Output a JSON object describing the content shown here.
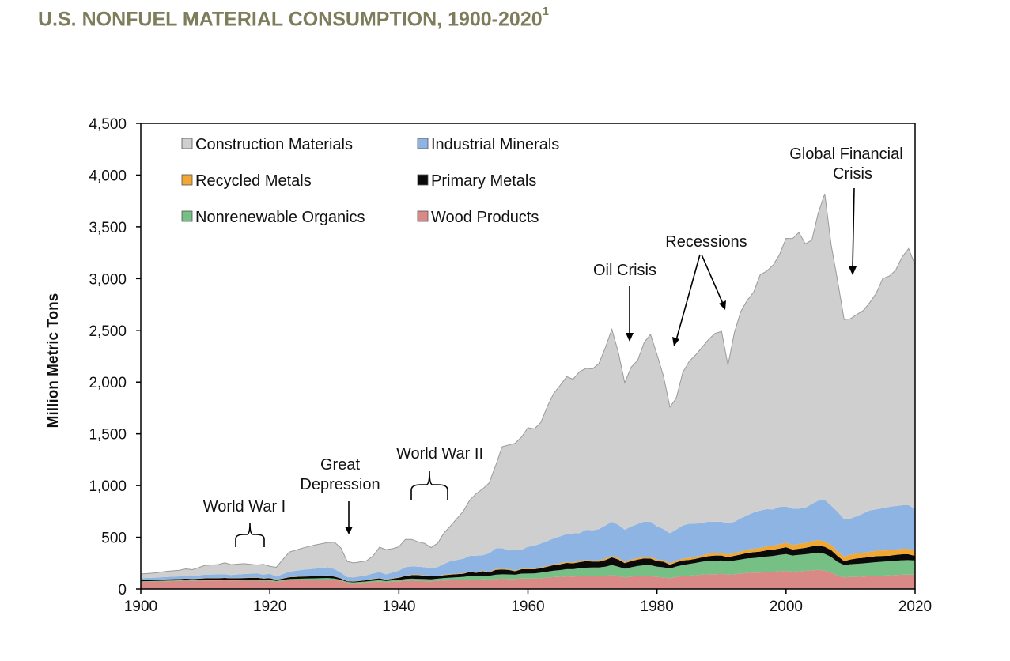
{
  "page": {
    "title": "U.S. NONFUEL MATERIAL CONSUMPTION, 1900-2020",
    "title_superscript": "1"
  },
  "chart_data": {
    "type": "area",
    "stacked": true,
    "title": "U.S. NONFUEL MATERIAL CONSUMPTION, 1900-2020",
    "xlabel": "",
    "ylabel": "Million Metric Tons",
    "xlim": [
      1900,
      2020
    ],
    "ylim": [
      0,
      4500
    ],
    "xticks": [
      "1900",
      "1920",
      "1940",
      "1960",
      "1980",
      "2000",
      "2020"
    ],
    "yticks": [
      "0",
      "500",
      "1,000",
      "1,500",
      "2,000",
      "2,500",
      "3,000",
      "3,500",
      "4,000",
      "4,500"
    ],
    "grid": false,
    "legend_position": "top-left",
    "x": [
      1900,
      1902,
      1904,
      1906,
      1907,
      1908,
      1910,
      1912,
      1913,
      1914,
      1916,
      1918,
      1919,
      1920,
      1921,
      1923,
      1925,
      1927,
      1929,
      1930,
      1931,
      1932,
      1933,
      1935,
      1936,
      1937,
      1938,
      1939,
      1940,
      1941,
      1942,
      1943,
      1944,
      1945,
      1946,
      1947,
      1948,
      1950,
      1951,
      1952,
      1953,
      1954,
      1955,
      1956,
      1957,
      1958,
      1959,
      1960,
      1961,
      1962,
      1963,
      1964,
      1965,
      1966,
      1967,
      1968,
      1969,
      1970,
      1971,
      1972,
      1973,
      1974,
      1975,
      1976,
      1977,
      1978,
      1979,
      1980,
      1981,
      1982,
      1983,
      1984,
      1985,
      1986,
      1987,
      1988,
      1989,
      1990,
      1991,
      1992,
      1993,
      1994,
      1995,
      1996,
      1997,
      1998,
      1999,
      2000,
      2001,
      2002,
      2003,
      2004,
      2005,
      2006,
      2007,
      2008,
      2009,
      2010,
      2011,
      2012,
      2013,
      2014,
      2015,
      2016,
      2017,
      2018,
      2019,
      2020
    ],
    "series": [
      {
        "name": "Wood Products",
        "color": "#d98a86",
        "values": [
          70,
          72,
          75,
          78,
          80,
          78,
          82,
          82,
          84,
          82,
          80,
          80,
          76,
          78,
          70,
          85,
          88,
          90,
          92,
          88,
          78,
          60,
          55,
          62,
          68,
          72,
          65,
          70,
          74,
          78,
          80,
          78,
          76,
          74,
          78,
          82,
          84,
          88,
          92,
          90,
          94,
          92,
          98,
          100,
          98,
          96,
          102,
          100,
          100,
          104,
          110,
          115,
          118,
          122,
          120,
          124,
          126,
          126,
          124,
          128,
          136,
          124,
          112,
          120,
          126,
          130,
          126,
          116,
          112,
          104,
          118,
          126,
          130,
          134,
          140,
          142,
          144,
          146,
          140,
          144,
          150,
          156,
          158,
          160,
          164,
          166,
          172,
          176,
          168,
          172,
          176,
          180,
          186,
          178,
          160,
          130,
          112,
          116,
          118,
          120,
          124,
          128,
          130,
          132,
          136,
          138,
          140,
          138
        ]
      },
      {
        "name": "Nonrenewable Organics",
        "color": "#76bf85",
        "values": [
          5,
          5,
          6,
          6,
          6,
          6,
          7,
          7,
          7,
          8,
          8,
          9,
          9,
          9,
          8,
          11,
          12,
          13,
          14,
          13,
          11,
          9,
          9,
          11,
          12,
          13,
          12,
          14,
          15,
          18,
          20,
          20,
          20,
          20,
          22,
          24,
          26,
          30,
          33,
          33,
          36,
          36,
          40,
          42,
          43,
          42,
          47,
          50,
          51,
          54,
          58,
          62,
          65,
          70,
          72,
          76,
          80,
          82,
          84,
          88,
          96,
          92,
          84,
          90,
          96,
          100,
          104,
          100,
          98,
          94,
          100,
          106,
          112,
          118,
          124,
          128,
          130,
          130,
          126,
          132,
          136,
          140,
          142,
          146,
          150,
          154,
          158,
          162,
          156,
          158,
          160,
          164,
          166,
          162,
          150,
          132,
          120,
          124,
          126,
          128,
          130,
          132,
          134,
          136,
          138,
          140,
          140,
          138
        ]
      },
      {
        "name": "Primary Metals",
        "color": "#0a0a0a",
        "values": [
          10,
          10,
          12,
          12,
          14,
          12,
          14,
          15,
          16,
          13,
          18,
          20,
          16,
          18,
          10,
          18,
          20,
          20,
          22,
          19,
          13,
          6,
          8,
          12,
          16,
          18,
          12,
          16,
          20,
          30,
          34,
          36,
          34,
          30,
          22,
          28,
          30,
          30,
          40,
          34,
          42,
          32,
          48,
          46,
          44,
          34,
          42,
          42,
          40,
          44,
          48,
          54,
          56,
          60,
          56,
          60,
          64,
          58,
          58,
          64,
          74,
          70,
          54,
          60,
          62,
          66,
          64,
          54,
          54,
          36,
          40,
          44,
          40,
          40,
          42,
          48,
          50,
          48,
          42,
          46,
          48,
          54,
          56,
          56,
          60,
          60,
          62,
          66,
          58,
          60,
          62,
          68,
          70,
          68,
          66,
          56,
          38,
          46,
          52,
          54,
          56,
          58,
          56,
          54,
          56,
          58,
          56,
          44
        ]
      },
      {
        "name": "Recycled Metals",
        "color": "#f0a832",
        "values": [
          2,
          2,
          2,
          2,
          2,
          2,
          3,
          3,
          3,
          3,
          3,
          3,
          3,
          3,
          2,
          3,
          3,
          3,
          4,
          3,
          2,
          2,
          2,
          2,
          3,
          3,
          2,
          3,
          3,
          4,
          4,
          4,
          4,
          4,
          4,
          4,
          5,
          5,
          6,
          6,
          6,
          6,
          7,
          7,
          7,
          6,
          7,
          7,
          7,
          8,
          8,
          9,
          10,
          10,
          10,
          11,
          12,
          12,
          12,
          13,
          14,
          14,
          13,
          14,
          15,
          16,
          17,
          16,
          16,
          15,
          17,
          18,
          19,
          20,
          22,
          24,
          26,
          26,
          26,
          28,
          30,
          32,
          34,
          36,
          38,
          40,
          42,
          44,
          44,
          46,
          48,
          50,
          52,
          52,
          50,
          48,
          44,
          46,
          48,
          50,
          50,
          52,
          52,
          52,
          52,
          54,
          54,
          52
        ]
      },
      {
        "name": "Industrial Minerals",
        "color": "#8db4e2",
        "values": [
          18,
          20,
          21,
          24,
          28,
          24,
          33,
          34,
          34,
          30,
          36,
          40,
          34,
          40,
          30,
          50,
          62,
          70,
          78,
          70,
          55,
          40,
          38,
          46,
          52,
          58,
          50,
          57,
          66,
          80,
          82,
          78,
          76,
          72,
          86,
          104,
          125,
          140,
          150,
          160,
          150,
          180,
          200,
          200,
          180,
          200,
          180,
          210,
          220,
          230,
          240,
          250,
          260,
          270,
          280,
          270,
          290,
          290,
          300,
          320,
          330,
          320,
          310,
          320,
          330,
          340,
          340,
          320,
          300,
          290,
          300,
          320,
          330,
          320,
          310,
          310,
          300,
          300,
          300,
          300,
          320,
          330,
          350,
          360,
          360,
          350,
          360,
          350,
          350,
          340,
          340,
          360,
          380,
          400,
          380,
          380,
          360,
          350,
          360,
          380,
          400,
          400,
          410,
          420,
          420,
          420,
          420,
          400
        ]
      },
      {
        "name": "Construction Materials",
        "color": "#cfcfcf",
        "values": [
          40,
          45,
          55,
          60,
          65,
          65,
          90,
          95,
          110,
          100,
          100,
          80,
          100,
          72,
          90,
          190,
          210,
          230,
          240,
          260,
          240,
          150,
          140,
          140,
          170,
          240,
          240,
          230,
          230,
          270,
          260,
          240,
          230,
          200,
          230,
          300,
          340,
          460,
          540,
          600,
          640,
          680,
          800,
          980,
          1020,
          1030,
          1090,
          1150,
          1130,
          1170,
          1300,
          1400,
          1460,
          1520,
          1490,
          1560,
          1560,
          1560,
          1600,
          1720,
          1860,
          1670,
          1420,
          1540,
          1580,
          1730,
          1810,
          1660,
          1480,
          1220,
          1270,
          1480,
          1570,
          1630,
          1700,
          1760,
          1820,
          1840,
          1530,
          1830,
          2000,
          2080,
          2130,
          2280,
          2300,
          2360,
          2440,
          2590,
          2610,
          2670,
          2550,
          2550,
          2780,
          2960,
          2520,
          2230,
          1930,
          1930,
          1950,
          1960,
          2010,
          2090,
          2220,
          2230,
          2280,
          2400,
          2480,
          2360
        ]
      }
    ],
    "annotations": [
      {
        "label": "World War I"
      },
      {
        "label": "Great",
        "label2": "Depression"
      },
      {
        "label": "World War II"
      },
      {
        "label": "Oil Crisis"
      },
      {
        "label": "Recessions"
      },
      {
        "label": "Global Financial",
        "label2": "Crisis"
      }
    ]
  }
}
